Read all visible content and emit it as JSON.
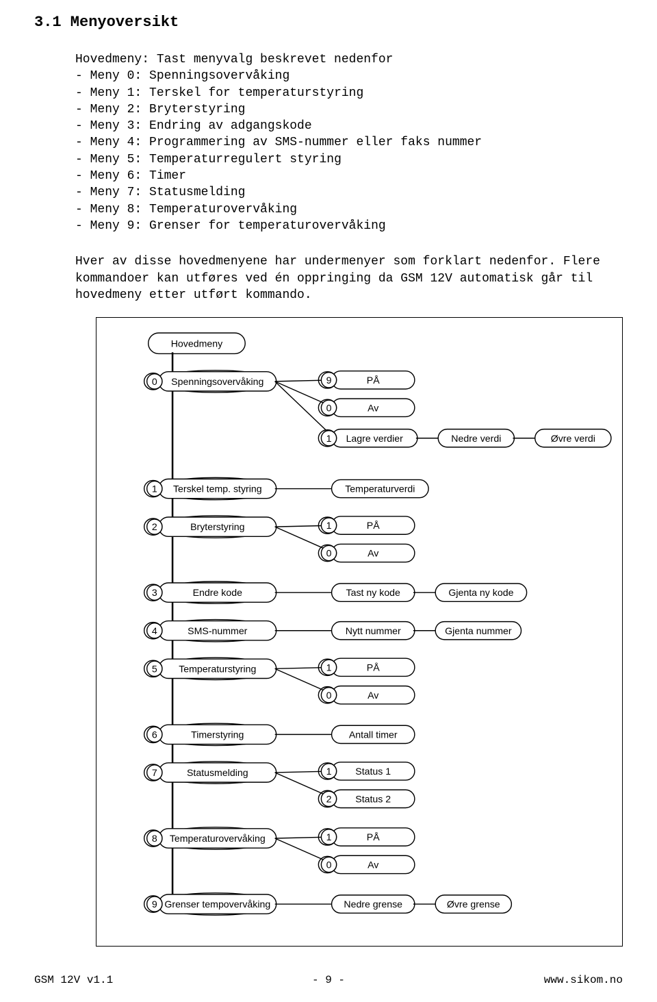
{
  "heading": "3.1 Menyoversikt",
  "intro": "Hovedmeny: Tast menyvalg beskrevet nedenfor",
  "menu_items": [
    "Meny 0: Spenningsovervåking",
    "Meny 1: Terskel for temperaturstyring",
    "Meny 2: Bryterstyring",
    "Meny 3: Endring av adgangskode",
    "Meny 4: Programmering av SMS-nummer eller faks nummer",
    "Meny 5: Temperaturregulert styring",
    "Meny 6: Timer",
    "Meny 7: Statusmelding",
    "Meny 8: Temperaturovervåking",
    "Meny 9: Grenser for temperaturovervåking"
  ],
  "para2": "Hver av disse hovedmenyene har undermenyer som forklart nedenfor. Flere kommandoer kan utføres ved én oppringing da GSM 12V automatisk går til hovedmeny etter utført kommando.",
  "diagram": {
    "root_label": "Hovedmeny",
    "rows": [
      {
        "key": "0",
        "label": "Spenningsovervåking",
        "children": [
          {
            "key": "9",
            "label": "PÅ"
          },
          {
            "key": "0",
            "label": "Av"
          },
          {
            "key": "1",
            "label": "Lagre verdier",
            "chain": [
              "Nedre verdi",
              "Øvre verdi"
            ]
          }
        ]
      },
      {
        "key": "1",
        "label": "Terskel temp. styring",
        "children": [
          {
            "label": "Temperaturverdi"
          }
        ]
      },
      {
        "key": "2",
        "label": "Bryterstyring",
        "children": [
          {
            "key": "1",
            "label": "PÅ"
          },
          {
            "key": "0",
            "label": "Av"
          }
        ]
      },
      {
        "key": "3",
        "label": "Endre kode",
        "children": [
          {
            "label": "Tast ny kode",
            "chain": [
              "Gjenta ny kode"
            ]
          }
        ]
      },
      {
        "key": "4",
        "label": "SMS-nummer",
        "children": [
          {
            "label": "Nytt nummer",
            "chain": [
              "Gjenta nummer"
            ]
          }
        ]
      },
      {
        "key": "5",
        "label": "Temperaturstyring",
        "children": [
          {
            "key": "1",
            "label": "PÅ"
          },
          {
            "key": "0",
            "label": "Av"
          }
        ]
      },
      {
        "key": "6",
        "label": "Timerstyring",
        "children": [
          {
            "label": "Antall timer"
          }
        ]
      },
      {
        "key": "7",
        "label": "Statusmelding",
        "children": [
          {
            "key": "1",
            "label": "Status 1"
          },
          {
            "key": "2",
            "label": "Status 2"
          }
        ]
      },
      {
        "key": "8",
        "label": "Temperaturovervåking",
        "children": [
          {
            "key": "1",
            "label": "PÅ"
          },
          {
            "key": "0",
            "label": "Av"
          }
        ]
      },
      {
        "key": "9",
        "label": "Grenser tempovervåking",
        "children": [
          {
            "label": "Nedre grense",
            "chain": [
              "Øvre grense"
            ]
          }
        ]
      }
    ],
    "style": {
      "stroke": "#000000",
      "stroke_width_main": 2.5,
      "stroke_width_thin": 1.4,
      "font_family": "Arial, Helvetica, sans-serif",
      "font_size_main": 14,
      "font_size_key": 14,
      "fill": "#ffffff"
    }
  },
  "footer": {
    "left": "GSM 12V v1.1",
    "center": "- 9 -",
    "right": "www.sikom.no"
  }
}
